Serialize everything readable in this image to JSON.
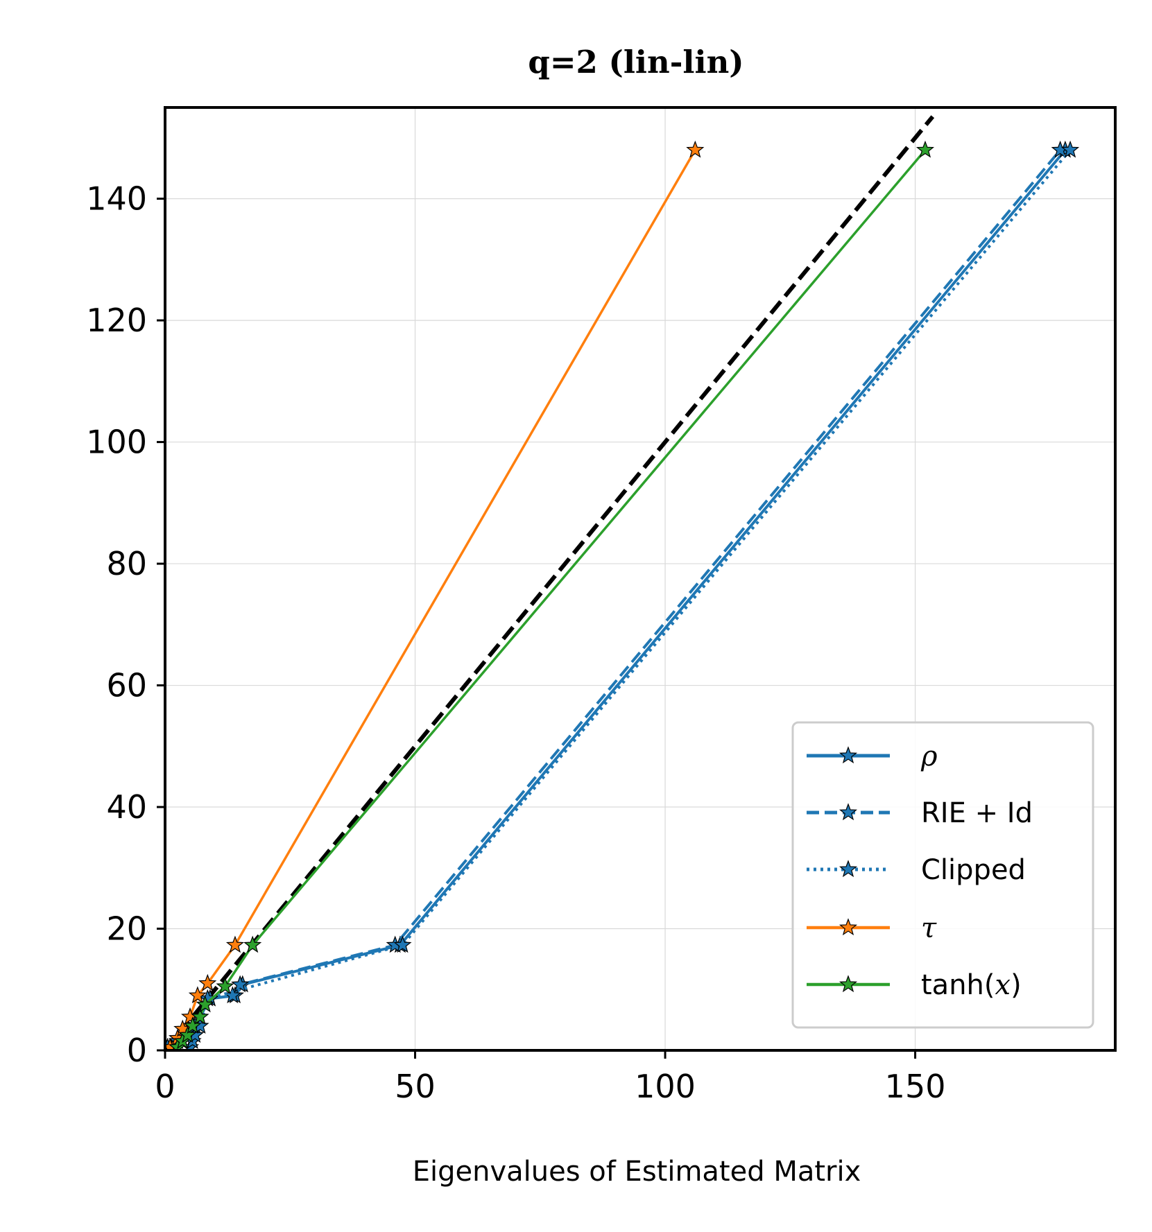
{
  "chart_data": {
    "type": "line",
    "title": "q=2 (lin-lin)",
    "xlabel": "Eigenvalues of Estimated Matrix",
    "ylabel": "",
    "xlim": [
      0,
      190
    ],
    "ylim": [
      0,
      155
    ],
    "x_ticks": [
      0,
      50,
      100,
      150
    ],
    "y_ticks": [
      0,
      20,
      40,
      60,
      80,
      100,
      120,
      140
    ],
    "x_tick_labels": [
      "0",
      "50",
      "100",
      "150"
    ],
    "y_tick_labels": [
      "0",
      "20",
      "40",
      "60",
      "80",
      "100",
      "120",
      "140"
    ],
    "grid": true,
    "legend_position": "lower-right",
    "reference_line": {
      "name": "identity",
      "style": "dashed",
      "color": "#000000",
      "x": [
        0,
        153.5
      ],
      "y": [
        0,
        153.5
      ]
    },
    "series": [
      {
        "name": "ρ",
        "legend_label": "ρ",
        "math": true,
        "color": "#1f77b4",
        "style": "solid",
        "width": 4,
        "x": [
          0.5,
          2.5,
          4.0,
          6.0,
          9.0,
          14.0,
          15.5,
          47.0,
          180.0
        ],
        "y": [
          0.5,
          1.5,
          2.5,
          4.0,
          8.5,
          9.0,
          10.8,
          17.3,
          148.0
        ]
      },
      {
        "name": "RIE + Id",
        "legend_label": "RIE + Id",
        "math": false,
        "color": "#1f77b4",
        "style": "dashed",
        "width": 4,
        "x": [
          0.5,
          2.5,
          4.0,
          6.0,
          9.0,
          13.5,
          15.0,
          46.0,
          179.0
        ],
        "y": [
          0.5,
          1.5,
          2.5,
          4.0,
          8.5,
          9.0,
          10.8,
          17.3,
          148.0
        ]
      },
      {
        "name": "Clipped",
        "legend_label": "Clipped",
        "math": false,
        "color": "#1f77b4",
        "style": "dotted",
        "width": 4,
        "x": [
          5.0,
          5.5,
          6.0,
          7.0,
          8.5,
          47.5,
          181.0
        ],
        "y": [
          0.5,
          1.5,
          2.5,
          4.0,
          8.5,
          17.3,
          148.0
        ]
      },
      {
        "name": "τ",
        "legend_label": "τ",
        "math": true,
        "color": "#ff7f0e",
        "style": "solid",
        "width": 3.5,
        "x": [
          1.0,
          2.5,
          3.5,
          5.0,
          6.5,
          8.5,
          14.0,
          106.0
        ],
        "y": [
          0.5,
          2.0,
          3.5,
          5.5,
          9.0,
          11.0,
          17.3,
          148.0
        ]
      },
      {
        "name": "tanh(x)",
        "legend_label_parts": [
          "tanh(",
          "x",
          ")"
        ],
        "legend_label": "tanh(x)",
        "math": false,
        "color": "#2ca02c",
        "style": "solid",
        "width": 3.5,
        "x": [
          2.5,
          3.5,
          4.5,
          5.5,
          7.0,
          8.0,
          12.0,
          17.5,
          152.0
        ],
        "y": [
          0.5,
          1.5,
          2.5,
          4.0,
          5.5,
          7.5,
          10.5,
          17.3,
          148.0
        ]
      }
    ]
  }
}
